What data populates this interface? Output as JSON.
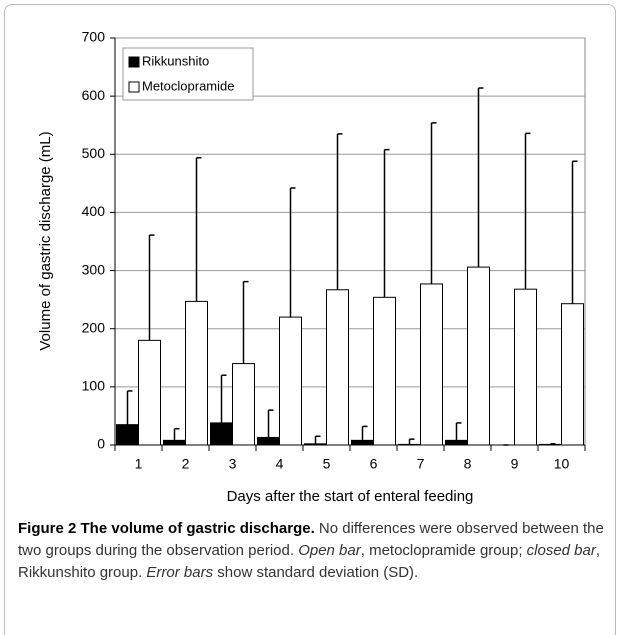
{
  "chart_data": {
    "type": "bar",
    "x_label": "Days after the start of enteral feeding",
    "y_label": "Volume of gastric discharge (mL)",
    "categories": [
      "1",
      "2",
      "3",
      "4",
      "5",
      "6",
      "7",
      "8",
      "9",
      "10"
    ],
    "series": [
      {
        "name": "Rikkunshito",
        "color": "#000000",
        "values": [
          35,
          8,
          38,
          13,
          2,
          8,
          1,
          8,
          0,
          1
        ],
        "errors": [
          58,
          20,
          82,
          47,
          13,
          24,
          9,
          30,
          0,
          1
        ]
      },
      {
        "name": "Metoclopramide",
        "color": "#ffffff",
        "values": [
          180,
          247,
          140,
          220,
          267,
          254,
          277,
          306,
          268,
          243
        ],
        "errors": [
          181,
          247,
          141,
          222,
          268,
          254,
          277,
          308,
          268,
          245
        ]
      }
    ],
    "ylim": [
      0,
      700
    ],
    "yticks": [
      0,
      100,
      200,
      300,
      400,
      500,
      600,
      700
    ],
    "grid": true,
    "legend": "top-left"
  },
  "caption": [
    "Figure 2 The volume of gastric discharge.",
    " No differences were observed between the two groups during the observation period. ",
    "Open bar",
    ", metoclopramide group; ",
    "closed bar",
    ", Rikkunshito group. ",
    "Error bars",
    " show standard deviation (SD)."
  ]
}
